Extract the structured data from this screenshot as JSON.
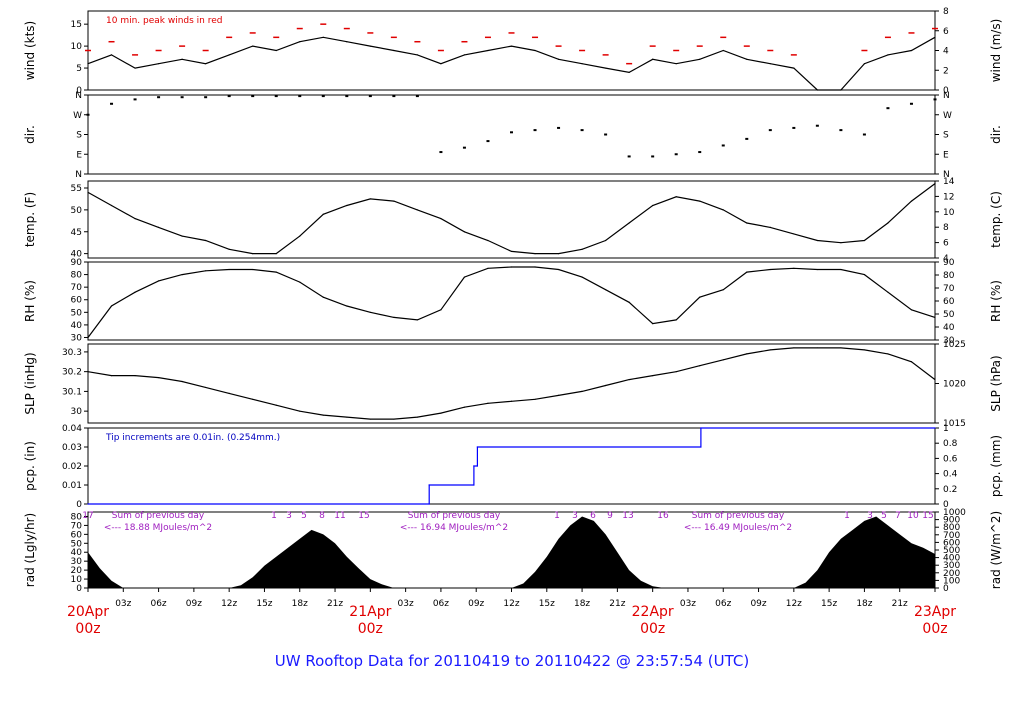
{
  "footer": "UW Rooftop Data for 20110419  to  20110422 @ 23:57:54  (UTC)",
  "colors": {
    "series": "#000000",
    "peak": "#e00000",
    "precip": "#0000ff",
    "annotation_purple": "#a020c0",
    "date_label": "#e00000",
    "footer": "#1a1aff"
  },
  "x_axis": {
    "hours_tick_labels": [
      "03z",
      "06z",
      "09z",
      "12z",
      "15z",
      "18z",
      "21z",
      "03z",
      "06z",
      "09z",
      "12z",
      "15z",
      "18z",
      "21z",
      "03z",
      "06z",
      "09z",
      "12z",
      "15z",
      "18z",
      "21z"
    ],
    "day_labels": [
      {
        "date": "20Apr",
        "time": "00z"
      },
      {
        "date": "21Apr",
        "time": "00z"
      },
      {
        "date": "22Apr",
        "time": "00z"
      },
      {
        "date": "23Apr",
        "time": "00z"
      }
    ]
  },
  "chart_data": [
    {
      "type": "line",
      "name": "wind",
      "ylabel": "wind (kts)",
      "ylabel_right": "wind (m/s)",
      "ylim": [
        0,
        18
      ],
      "yticks": [
        0,
        5,
        10,
        15
      ],
      "yticks_right": [
        0,
        2,
        4,
        6,
        8
      ],
      "annotation": "10 min. peak winds in red",
      "x_hours": [
        0,
        2,
        4,
        6,
        8,
        10,
        12,
        14,
        16,
        18,
        20,
        22,
        24,
        26,
        28,
        30,
        32,
        34,
        36,
        38,
        40,
        42,
        44,
        46,
        48,
        50,
        52,
        54,
        56,
        58,
        60,
        62,
        64,
        66,
        68,
        70,
        72
      ],
      "values": [
        6,
        8,
        5,
        6,
        7,
        6,
        8,
        10,
        9,
        11,
        12,
        11,
        10,
        9,
        8,
        6,
        8,
        9,
        10,
        9,
        7,
        6,
        5,
        4,
        7,
        6,
        7,
        9,
        7,
        6,
        5,
        0,
        0,
        6,
        8,
        9,
        12
      ],
      "peaks": [
        9,
        11,
        8,
        9,
        10,
        9,
        12,
        13,
        12,
        14,
        15,
        14,
        13,
        12,
        11,
        9,
        11,
        12,
        13,
        12,
        10,
        9,
        8,
        6,
        10,
        9,
        10,
        12,
        10,
        9,
        8,
        0,
        0,
        9,
        12,
        13,
        14
      ]
    },
    {
      "type": "scatter",
      "name": "direction",
      "ylabel": "dir.",
      "ylabel_right": "dir.",
      "ytick_labels": [
        "N",
        "E",
        "S",
        "W",
        "N"
      ],
      "x_hours": [
        0,
        2,
        4,
        6,
        8,
        10,
        12,
        14,
        16,
        18,
        20,
        22,
        24,
        26,
        28,
        30,
        32,
        34,
        36,
        38,
        40,
        42,
        44,
        46,
        48,
        50,
        52,
        54,
        56,
        58,
        60,
        62,
        64,
        66,
        68,
        70,
        72
      ],
      "values": [
        270,
        320,
        340,
        350,
        350,
        350,
        355,
        355,
        355,
        355,
        355,
        355,
        355,
        355,
        355,
        100,
        120,
        150,
        190,
        200,
        210,
        200,
        180,
        80,
        80,
        90,
        100,
        130,
        160,
        200,
        210,
        220,
        200,
        180,
        300,
        320,
        340
      ]
    },
    {
      "type": "line",
      "name": "temperature",
      "ylabel": "temp. (F)",
      "ylabel_right": "temp. (C)",
      "ylim": [
        39,
        56.6
      ],
      "yticks": [
        40,
        45,
        50,
        55
      ],
      "yticks_right": [
        4,
        6,
        8,
        10,
        12,
        14
      ],
      "x_hours": [
        0,
        2,
        4,
        6,
        8,
        10,
        12,
        14,
        16,
        18,
        20,
        22,
        24,
        26,
        28,
        30,
        32,
        34,
        36,
        38,
        40,
        42,
        44,
        46,
        48,
        50,
        52,
        54,
        56,
        58,
        60,
        62,
        64,
        66,
        68,
        70,
        72
      ],
      "values": [
        54,
        51,
        48,
        46,
        44,
        43,
        41,
        40,
        40,
        44,
        49,
        51,
        52.5,
        52,
        50,
        48,
        45,
        43,
        40.5,
        40,
        40,
        41,
        43,
        47,
        51,
        53,
        52,
        50,
        47,
        46,
        44.5,
        43,
        42.5,
        43,
        47,
        52,
        56
      ]
    },
    {
      "type": "line",
      "name": "relative-humidity",
      "ylabel": "RH (%)",
      "ylabel_right": "RH (%)",
      "ylim": [
        28,
        90
      ],
      "yticks": [
        30,
        40,
        50,
        60,
        70,
        80,
        90
      ],
      "yticks_right": [
        30,
        40,
        50,
        60,
        70,
        80,
        90
      ],
      "x_hours": [
        0,
        2,
        4,
        6,
        8,
        10,
        12,
        14,
        16,
        18,
        20,
        22,
        24,
        26,
        28,
        30,
        32,
        34,
        36,
        38,
        40,
        42,
        44,
        46,
        48,
        50,
        52,
        54,
        56,
        58,
        60,
        62,
        64,
        66,
        68,
        70,
        72
      ],
      "values": [
        30,
        55,
        66,
        75,
        80,
        83,
        84,
        84,
        82,
        74,
        62,
        55,
        50,
        46,
        44,
        52,
        78,
        85,
        86,
        86,
        84,
        78,
        68,
        58,
        41,
        44,
        62,
        68,
        82,
        84,
        85,
        84,
        84,
        80,
        66,
        52,
        46
      ]
    },
    {
      "type": "line",
      "name": "sea-level-pressure",
      "ylabel": "SLP (inHg)",
      "ylabel_right": "SLP (hPa)",
      "ylim": [
        29.94,
        30.34
      ],
      "yticks": [
        30.0,
        30.1,
        30.2,
        30.3
      ],
      "yticks_right": [
        1015,
        1020,
        1025
      ],
      "x_hours": [
        0,
        2,
        4,
        6,
        8,
        10,
        12,
        14,
        16,
        18,
        20,
        22,
        24,
        26,
        28,
        30,
        32,
        34,
        36,
        38,
        40,
        42,
        44,
        46,
        48,
        50,
        52,
        54,
        56,
        58,
        60,
        62,
        64,
        66,
        68,
        70,
        72
      ],
      "values": [
        30.2,
        30.18,
        30.18,
        30.17,
        30.15,
        30.12,
        30.09,
        30.06,
        30.03,
        30.0,
        29.98,
        29.97,
        29.96,
        29.96,
        29.97,
        29.99,
        30.02,
        30.04,
        30.05,
        30.06,
        30.08,
        30.1,
        30.13,
        30.16,
        30.18,
        30.2,
        30.23,
        30.26,
        30.29,
        30.31,
        30.32,
        30.32,
        30.32,
        30.31,
        30.29,
        30.25,
        30.16
      ]
    },
    {
      "type": "line",
      "name": "precipitation",
      "ylabel": "pcp. (in)",
      "ylabel_right": "pcp. (mm)",
      "ylim": [
        0,
        0.04
      ],
      "yticks": [
        0,
        0.01,
        0.02,
        0.03,
        0.04
      ],
      "yticks_right": [
        "0",
        "0.2",
        "0.4",
        "0.6",
        "0.8",
        "1"
      ],
      "annotation": "Tip increments are 0.01in. (0.254mm.)",
      "x_hours": [
        0,
        29,
        29,
        32.8,
        32.8,
        33.1,
        33.1,
        52.1,
        52.1,
        72
      ],
      "values": [
        0,
        0,
        0.01,
        0.01,
        0.02,
        0.02,
        0.03,
        0.03,
        0.04,
        0.04
      ]
    },
    {
      "type": "area",
      "name": "solar-radiation",
      "ylabel": "rad (Lgly/hr)",
      "ylabel_right": "rad (W/m^2)",
      "ylim": [
        0,
        85
      ],
      "yticks": [
        0,
        10,
        20,
        30,
        40,
        50,
        60,
        70,
        80
      ],
      "yticks_right": [
        0,
        100,
        200,
        300,
        400,
        500,
        600,
        700,
        800,
        900,
        1000
      ],
      "hour_labels": [
        "17",
        "1",
        "3",
        "5",
        "8",
        "11",
        "15",
        "1",
        "3",
        "6",
        "9",
        "13",
        "16",
        "1",
        "3",
        "5",
        "7",
        "10",
        "15"
      ],
      "day_sums": [
        {
          "line1": "Sum of previous day",
          "line2": "<--- 18.88 MJoules/m^2"
        },
        {
          "line1": "Sum of previous day",
          "line2": "<--- 16.94 MJoules/m^2"
        },
        {
          "line1": "Sum of previous day",
          "line2": "<--- 16.49 MJoules/m^2"
        }
      ],
      "x_hours": [
        0,
        1,
        2,
        3,
        12,
        13,
        14,
        15,
        16,
        17,
        18,
        19,
        20,
        21,
        22,
        23,
        24,
        25,
        26,
        27,
        36,
        37,
        38,
        39,
        40,
        41,
        42,
        43,
        44,
        45,
        46,
        47,
        48,
        49,
        50,
        51,
        60,
        61,
        62,
        63,
        64,
        65,
        66,
        67,
        68,
        69,
        70,
        71,
        72
      ],
      "values": [
        40,
        22,
        8,
        0,
        0,
        3,
        12,
        25,
        35,
        45,
        55,
        65,
        60,
        50,
        35,
        22,
        10,
        4,
        0,
        0,
        0,
        5,
        18,
        35,
        55,
        70,
        80,
        75,
        60,
        40,
        20,
        8,
        2,
        0,
        0,
        0,
        0,
        6,
        20,
        40,
        55,
        65,
        75,
        80,
        70,
        60,
        50,
        45,
        38
      ]
    }
  ]
}
